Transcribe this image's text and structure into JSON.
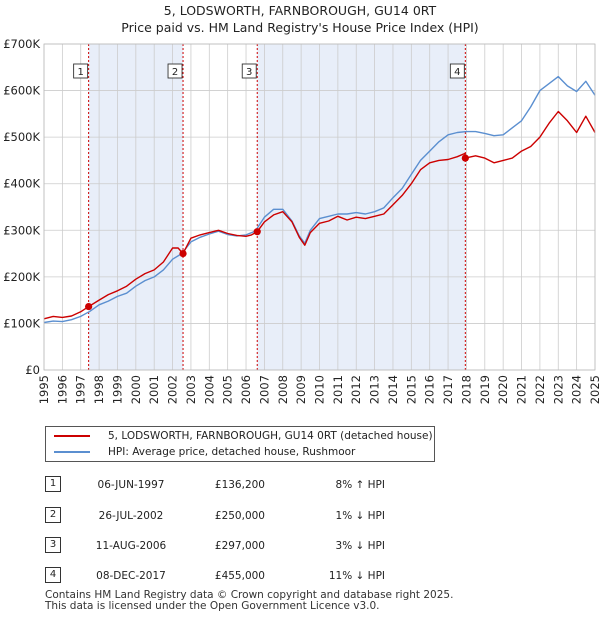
{
  "title_line1": "5, LODSWORTH, FARNBOROUGH, GU14 0RT",
  "title_line2": "Price paid vs. HM Land Registry's House Price Index (HPI)",
  "colors": {
    "property": "#cc0000",
    "hpi": "#5b8fd0",
    "shade": "#e8eef9",
    "grid": "#cccccc"
  },
  "legend": {
    "property": "5, LODSWORTH, FARNBOROUGH, GU14 0RT (detached house)",
    "hpi": "HPI: Average price, detached house, Rushmoor"
  },
  "sales": [
    {
      "num": "1",
      "date": "06-JUN-1997",
      "price": "£136,200",
      "hpi": "8% ↑ HPI"
    },
    {
      "num": "2",
      "date": "26-JUL-2002",
      "price": "£250,000",
      "hpi": "1% ↓ HPI"
    },
    {
      "num": "3",
      "date": "11-AUG-2006",
      "price": "£297,000",
      "hpi": "3% ↓ HPI"
    },
    {
      "num": "4",
      "date": "08-DEC-2017",
      "price": "£455,000",
      "hpi": "11% ↓ HPI"
    }
  ],
  "footer_line1": "Contains HM Land Registry data © Crown copyright and database right 2025.",
  "footer_line2": "This data is licensed under the Open Government Licence v3.0.",
  "chart_data": {
    "type": "line",
    "title": "5, LODSWORTH, FARNBOROUGH, GU14 0RT — Price paid vs. HM Land Registry's House Price Index (HPI)",
    "xlabel": "",
    "ylabel": "",
    "xlim": [
      1995,
      2025
    ],
    "ylim": [
      0,
      700000
    ],
    "y_ticks": [
      {
        "value": 0,
        "label": "£0"
      },
      {
        "value": 100000,
        "label": "£100K"
      },
      {
        "value": 200000,
        "label": "£200K"
      },
      {
        "value": 300000,
        "label": "£300K"
      },
      {
        "value": 400000,
        "label": "£400K"
      },
      {
        "value": 500000,
        "label": "£500K"
      },
      {
        "value": 600000,
        "label": "£600K"
      },
      {
        "value": 700000,
        "label": "£700K"
      }
    ],
    "x_ticks": [
      "1995",
      "1996",
      "1997",
      "1998",
      "1999",
      "2000",
      "2001",
      "2002",
      "2003",
      "2004",
      "2005",
      "2006",
      "2007",
      "2008",
      "2009",
      "2010",
      "2011",
      "2012",
      "2013",
      "2014",
      "2015",
      "2016",
      "2017",
      "2018",
      "2019",
      "2020",
      "2021",
      "2022",
      "2023",
      "2024",
      "2025"
    ],
    "grid": true,
    "sale_markers": [
      {
        "label": "1",
        "x": 1997.43,
        "y": 136200
      },
      {
        "label": "2",
        "x": 2002.57,
        "y": 250000
      },
      {
        "label": "3",
        "x": 2006.61,
        "y": 297000
      },
      {
        "label": "4",
        "x": 2017.94,
        "y": 455000
      }
    ],
    "shaded_spans": [
      [
        1997.43,
        2002.57
      ],
      [
        2006.61,
        2017.94
      ]
    ],
    "series": [
      {
        "name": "5, LODSWORTH, FARNBOROUGH, GU14 0RT (detached house)",
        "color": "#cc0000",
        "x": [
          1995.0,
          1995.5,
          1996.0,
          1996.5,
          1997.0,
          1997.43,
          1998.0,
          1998.5,
          1999.0,
          1999.5,
          2000.0,
          2000.5,
          2001.0,
          2001.5,
          2002.0,
          2002.3,
          2002.57,
          2003.0,
          2003.5,
          2004.0,
          2004.5,
          2005.0,
          2005.5,
          2006.0,
          2006.3,
          2006.61,
          2007.0,
          2007.5,
          2008.0,
          2008.5,
          2008.9,
          2009.2,
          2009.5,
          2010.0,
          2010.5,
          2011.0,
          2011.5,
          2012.0,
          2012.5,
          2013.0,
          2013.5,
          2014.0,
          2014.5,
          2015.0,
          2015.5,
          2016.0,
          2016.5,
          2017.0,
          2017.5,
          2017.93,
          2017.94,
          2018.5,
          2019.0,
          2019.5,
          2020.0,
          2020.5,
          2021.0,
          2021.5,
          2022.0,
          2022.5,
          2023.0,
          2023.5,
          2024.0,
          2024.5,
          2025.0
        ],
        "y": [
          110000,
          115000,
          113000,
          116000,
          125000,
          136200,
          150000,
          162000,
          170000,
          180000,
          195000,
          207000,
          215000,
          232000,
          262000,
          262000,
          250000,
          283000,
          290000,
          295000,
          300000,
          293000,
          289000,
          287000,
          290000,
          297000,
          318000,
          333000,
          340000,
          318000,
          285000,
          268000,
          295000,
          315000,
          320000,
          330000,
          322000,
          328000,
          325000,
          330000,
          335000,
          355000,
          375000,
          400000,
          430000,
          445000,
          450000,
          452000,
          458000,
          465000,
          455000,
          460000,
          455000,
          445000,
          450000,
          455000,
          470000,
          480000,
          500000,
          530000,
          555000,
          535000,
          510000,
          545000,
          510000
        ]
      },
      {
        "name": "HPI: Average price, detached house, Rushmoor",
        "color": "#5b8fd0",
        "x": [
          1995.0,
          1995.5,
          1996.0,
          1996.5,
          1997.0,
          1997.5,
          1998.0,
          1998.5,
          1999.0,
          1999.5,
          2000.0,
          2000.5,
          2001.0,
          2001.5,
          2002.0,
          2002.5,
          2003.0,
          2003.5,
          2004.0,
          2004.5,
          2005.0,
          2005.5,
          2006.0,
          2006.5,
          2007.0,
          2007.5,
          2008.0,
          2008.5,
          2008.9,
          2009.2,
          2009.5,
          2010.0,
          2010.5,
          2011.0,
          2011.5,
          2012.0,
          2012.5,
          2013.0,
          2013.5,
          2014.0,
          2014.5,
          2015.0,
          2015.5,
          2016.0,
          2016.5,
          2017.0,
          2017.5,
          2018.0,
          2018.5,
          2019.0,
          2019.5,
          2020.0,
          2020.5,
          2021.0,
          2021.5,
          2022.0,
          2022.5,
          2023.0,
          2023.5,
          2024.0,
          2024.5,
          2025.0
        ],
        "y": [
          102000,
          105000,
          104000,
          108000,
          115000,
          126000,
          140000,
          148000,
          158000,
          165000,
          180000,
          192000,
          200000,
          215000,
          238000,
          250000,
          275000,
          285000,
          292000,
          298000,
          291000,
          288000,
          290000,
          298000,
          328000,
          345000,
          345000,
          320000,
          288000,
          272000,
          300000,
          325000,
          330000,
          335000,
          335000,
          338000,
          335000,
          340000,
          348000,
          370000,
          390000,
          420000,
          450000,
          470000,
          490000,
          505000,
          510000,
          512000,
          512000,
          508000,
          503000,
          505000,
          520000,
          535000,
          565000,
          600000,
          615000,
          630000,
          610000,
          598000,
          620000,
          590000
        ]
      }
    ]
  }
}
